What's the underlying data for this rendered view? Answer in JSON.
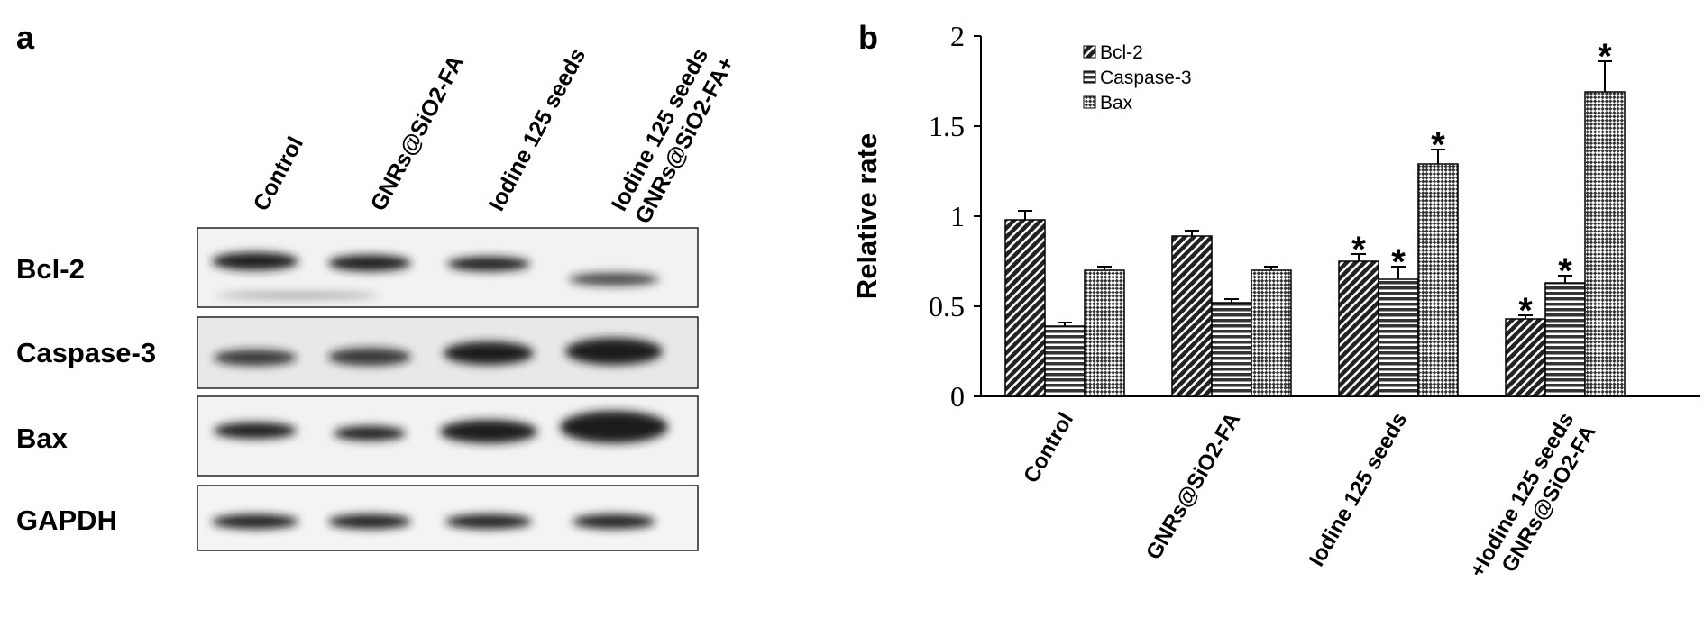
{
  "panel_a": {
    "label": "a",
    "lanes": [
      [
        "Control"
      ],
      [
        "GNRs@SiO2-FA"
      ],
      [
        "Iodine 125 seeds"
      ],
      [
        "GNRs@SiO2-FA+",
        "Iodine 125 seeds"
      ]
    ],
    "rows": [
      "Bcl-2",
      "Caspase-3",
      "Bax",
      "GAPDH"
    ]
  },
  "chart_data": {
    "type": "bar",
    "label": "b",
    "y_label": "Relative rate",
    "categories": [
      [
        "Control"
      ],
      [
        "GNRs@SiO2-FA"
      ],
      [
        "Iodine 125 seeds"
      ],
      [
        "GNRs@SiO2-FA",
        "+Iodine 125 seeds"
      ]
    ],
    "series": [
      {
        "name": "Bcl-2",
        "pattern": "diagonal",
        "values": [
          0.98,
          0.89,
          0.75,
          0.43
        ],
        "errors": [
          0.05,
          0.03,
          0.04,
          0.02
        ],
        "annotations": [
          null,
          null,
          "*",
          "*"
        ]
      },
      {
        "name": "Caspase-3",
        "pattern": "horizontal",
        "values": [
          0.39,
          0.52,
          0.65,
          0.63
        ],
        "errors": [
          0.02,
          0.02,
          0.07,
          0.04
        ],
        "annotations": [
          null,
          null,
          "*",
          "*"
        ]
      },
      {
        "name": "Bax",
        "pattern": "checker",
        "values": [
          0.7,
          0.7,
          1.29,
          1.69
        ],
        "errors": [
          0.02,
          0.02,
          0.08,
          0.17
        ],
        "annotations": [
          null,
          null,
          "*",
          "*"
        ]
      }
    ],
    "ylim": [
      0,
      2
    ],
    "yticks": [
      0,
      0.5,
      1,
      1.5,
      2
    ],
    "legend": "top-left"
  }
}
